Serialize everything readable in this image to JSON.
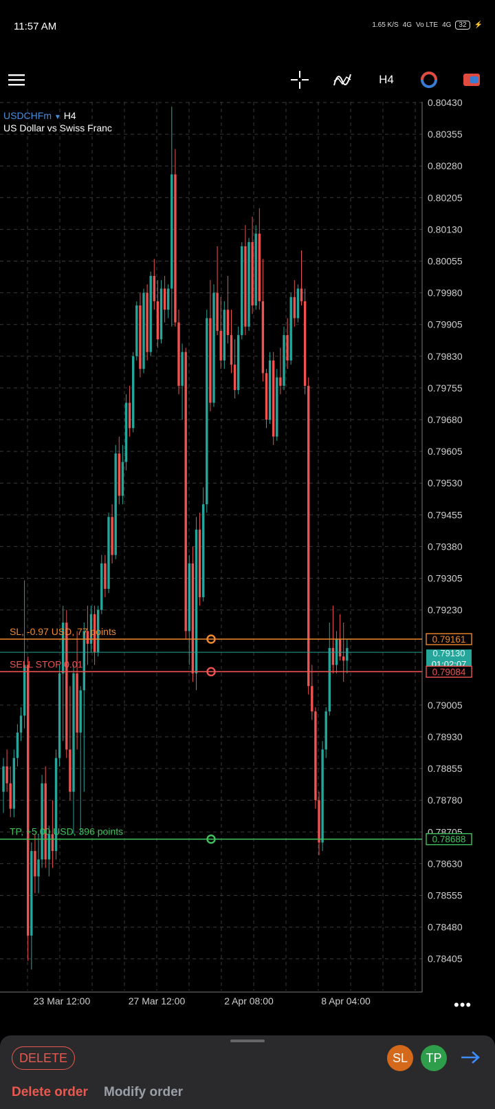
{
  "status_bar": {
    "time": "11:57 AM",
    "speed": "1.65 K/S",
    "net1": "4G",
    "volte": "Vo LTE",
    "net2": "4G",
    "battery": "32"
  },
  "toolbar": {
    "menu_icon": "hamburger-menu-icon",
    "crosshair_icon": "crosshair-icon",
    "indicators_icon": "indicators-icon",
    "timeframe": "H4",
    "colors": {
      "up": "#26a69a",
      "down": "#ef5350",
      "sl": "#f08a2e",
      "tp": "#3ec35a"
    }
  },
  "chart": {
    "symbol": "USDCHFm",
    "symbol_timeframe": "H4",
    "description": "US Dollar vs Swiss Franc",
    "price_ticks": [
      "0.80430",
      "0.80355",
      "0.80280",
      "0.80205",
      "0.80130",
      "0.80055",
      "0.79980",
      "0.79905",
      "0.79830",
      "0.79755",
      "0.79680",
      "0.79605",
      "0.79530",
      "0.79455",
      "0.79380",
      "0.79305",
      "0.79230",
      "0.79005",
      "0.78930",
      "0.78855",
      "0.78780",
      "0.78705",
      "0.78630",
      "0.78555",
      "0.78480",
      "0.78405"
    ],
    "time_labels": [
      "23 Mar 12:00",
      "27 Mar 12:00",
      "2 Apr 08:00",
      "8 Apr 04:00"
    ],
    "sl_label": "SL, -0.97 USD, 77 points",
    "sl_price": "0.79161",
    "order_label": "SELL STOP 0.01",
    "order_price": "0.79084",
    "tp_label": "TP, +5.00 USD, 396 points",
    "tp_price": "0.78688",
    "bid_price": "0.79130",
    "countdown": "01:02:07"
  },
  "chart_data": {
    "type": "candlestick",
    "y_range": [
      0.7835,
      0.8043
    ],
    "candles": [
      [
        0.788,
        0.7888,
        0.7875,
        0.7886
      ],
      [
        0.7886,
        0.789,
        0.788,
        0.7882
      ],
      [
        0.7882,
        0.7886,
        0.7874,
        0.7876
      ],
      [
        0.7876,
        0.789,
        0.7874,
        0.7888
      ],
      [
        0.7888,
        0.7896,
        0.7886,
        0.7894
      ],
      [
        0.7894,
        0.79,
        0.7892,
        0.7898
      ],
      [
        0.7898,
        0.793,
        0.7895,
        0.791
      ],
      [
        0.791,
        0.7912,
        0.784,
        0.7846
      ],
      [
        0.7846,
        0.7868,
        0.7838,
        0.7866
      ],
      [
        0.7866,
        0.787,
        0.7856,
        0.786
      ],
      [
        0.786,
        0.787,
        0.7856,
        0.7864
      ],
      [
        0.7864,
        0.7884,
        0.7862,
        0.7882
      ],
      [
        0.7882,
        0.7886,
        0.7862,
        0.7864
      ],
      [
        0.7864,
        0.7872,
        0.786,
        0.787
      ],
      [
        0.787,
        0.7878,
        0.7862,
        0.7866
      ],
      [
        0.7866,
        0.789,
        0.7864,
        0.7888
      ],
      [
        0.7888,
        0.791,
        0.7886,
        0.7908
      ],
      [
        0.7908,
        0.7924,
        0.7892,
        0.792
      ],
      [
        0.792,
        0.7923,
        0.7888,
        0.789
      ],
      [
        0.789,
        0.7905,
        0.7878,
        0.788
      ],
      [
        0.788,
        0.791,
        0.787,
        0.7908
      ],
      [
        0.7908,
        0.7918,
        0.789,
        0.7894
      ],
      [
        0.7894,
        0.7905,
        0.787,
        0.7904
      ],
      [
        0.7904,
        0.792,
        0.788,
        0.7918
      ],
      [
        0.7918,
        0.7924,
        0.791,
        0.7915
      ],
      [
        0.7915,
        0.7924,
        0.7913,
        0.7922
      ],
      [
        0.7922,
        0.7924,
        0.791,
        0.7913
      ],
      [
        0.7913,
        0.7924,
        0.7912,
        0.7923
      ],
      [
        0.7923,
        0.7936,
        0.7922,
        0.7934
      ],
      [
        0.7934,
        0.7936,
        0.7926,
        0.7928
      ],
      [
        0.7928,
        0.7946,
        0.7927,
        0.7945
      ],
      [
        0.7945,
        0.7948,
        0.7934,
        0.7936
      ],
      [
        0.7936,
        0.7962,
        0.7935,
        0.796
      ],
      [
        0.796,
        0.7964,
        0.7948,
        0.795
      ],
      [
        0.795,
        0.7962,
        0.7948,
        0.7958
      ],
      [
        0.7958,
        0.7974,
        0.7956,
        0.7972
      ],
      [
        0.7972,
        0.7976,
        0.7964,
        0.7966
      ],
      [
        0.7966,
        0.7984,
        0.7965,
        0.7983
      ],
      [
        0.7983,
        0.7996,
        0.7982,
        0.7995
      ],
      [
        0.7995,
        0.7998,
        0.7978,
        0.798
      ],
      [
        0.798,
        0.7999,
        0.7979,
        0.7998
      ],
      [
        0.7998,
        0.8,
        0.7982,
        0.7984
      ],
      [
        0.7984,
        0.8003,
        0.7983,
        0.8002
      ],
      [
        0.8002,
        0.8006,
        0.7994,
        0.7996
      ],
      [
        0.7996,
        0.8001,
        0.7985,
        0.7987
      ],
      [
        0.7987,
        0.8001,
        0.7986,
        0.7999
      ],
      [
        0.7999,
        0.8002,
        0.7991,
        0.7994
      ],
      [
        0.7994,
        0.8,
        0.7992,
        0.7999
      ],
      [
        0.7999,
        0.8042,
        0.799,
        0.8026
      ],
      [
        0.8026,
        0.8032,
        0.799,
        0.7991
      ],
      [
        0.7991,
        0.7994,
        0.7974,
        0.7976
      ],
      [
        0.7976,
        0.7986,
        0.7968,
        0.7984
      ],
      [
        0.7984,
        0.7985,
        0.7916,
        0.7918
      ],
      [
        0.7918,
        0.7936,
        0.791,
        0.7934
      ],
      [
        0.7934,
        0.7938,
        0.7906,
        0.7908
      ],
      [
        0.7908,
        0.7945,
        0.7904,
        0.7942
      ],
      [
        0.7942,
        0.7946,
        0.7924,
        0.7926
      ],
      [
        0.7926,
        0.7952,
        0.7925,
        0.7948
      ],
      [
        0.7948,
        0.7994,
        0.7946,
        0.7992
      ],
      [
        0.7992,
        0.8001,
        0.797,
        0.7972
      ],
      [
        0.7972,
        0.8,
        0.7971,
        0.7998
      ],
      [
        0.7998,
        0.8009,
        0.7988,
        0.7989
      ],
      [
        0.7989,
        0.7997,
        0.798,
        0.7982
      ],
      [
        0.7982,
        0.7996,
        0.798,
        0.7994
      ],
      [
        0.7994,
        0.8002,
        0.7986,
        0.7988
      ],
      [
        0.7988,
        0.7994,
        0.7979,
        0.7981
      ],
      [
        0.7981,
        0.7987,
        0.7973,
        0.7975
      ],
      [
        0.7975,
        0.799,
        0.7974,
        0.7988
      ],
      [
        0.7988,
        0.801,
        0.7987,
        0.8009
      ],
      [
        0.8009,
        0.8014,
        0.7988,
        0.799
      ],
      [
        0.799,
        0.8011,
        0.7989,
        0.801
      ],
      [
        0.801,
        0.8016,
        0.7993,
        0.7995
      ],
      [
        0.7995,
        0.8014,
        0.7994,
        0.8012
      ],
      [
        0.8012,
        0.8018,
        0.7994,
        0.7996
      ],
      [
        0.7996,
        0.8006,
        0.7977,
        0.7979
      ],
      [
        0.7979,
        0.798,
        0.7966,
        0.7968
      ],
      [
        0.7968,
        0.7984,
        0.7967,
        0.7982
      ],
      [
        0.7982,
        0.7984,
        0.7962,
        0.7964
      ],
      [
        0.7964,
        0.798,
        0.7963,
        0.7978
      ],
      [
        0.7978,
        0.7985,
        0.7974,
        0.7976
      ],
      [
        0.7976,
        0.799,
        0.7975,
        0.7988
      ],
      [
        0.7988,
        0.7992,
        0.798,
        0.7982
      ],
      [
        0.7982,
        0.7998,
        0.7981,
        0.7997
      ],
      [
        0.7997,
        0.8001,
        0.799,
        0.7992
      ],
      [
        0.7992,
        0.8,
        0.7991,
        0.7999
      ],
      [
        0.7999,
        0.8008,
        0.7995,
        0.7996
      ],
      [
        0.7996,
        0.7999,
        0.7974,
        0.7976
      ],
      [
        0.7976,
        0.7978,
        0.7903,
        0.7905
      ],
      [
        0.7905,
        0.791,
        0.7897,
        0.7899
      ],
      [
        0.7899,
        0.79,
        0.7876,
        0.7878
      ],
      [
        0.7878,
        0.788,
        0.7865,
        0.7868
      ],
      [
        0.7868,
        0.7892,
        0.7866,
        0.789
      ],
      [
        0.789,
        0.79,
        0.7888,
        0.7899
      ],
      [
        0.7899,
        0.792,
        0.7898,
        0.7914
      ],
      [
        0.7914,
        0.7924,
        0.7908,
        0.791
      ],
      [
        0.791,
        0.7918,
        0.7908,
        0.7916
      ],
      [
        0.7916,
        0.7922,
        0.7911,
        0.7912
      ],
      [
        0.7912,
        0.792,
        0.7906,
        0.7911
      ],
      [
        0.7911,
        0.7916,
        0.7908,
        0.7914
      ]
    ]
  },
  "bottom_panel": {
    "delete_button": "DELETE",
    "sl_button": "SL",
    "tp_button": "TP",
    "tab_delete": "Delete order",
    "tab_modify": "Modify order"
  }
}
